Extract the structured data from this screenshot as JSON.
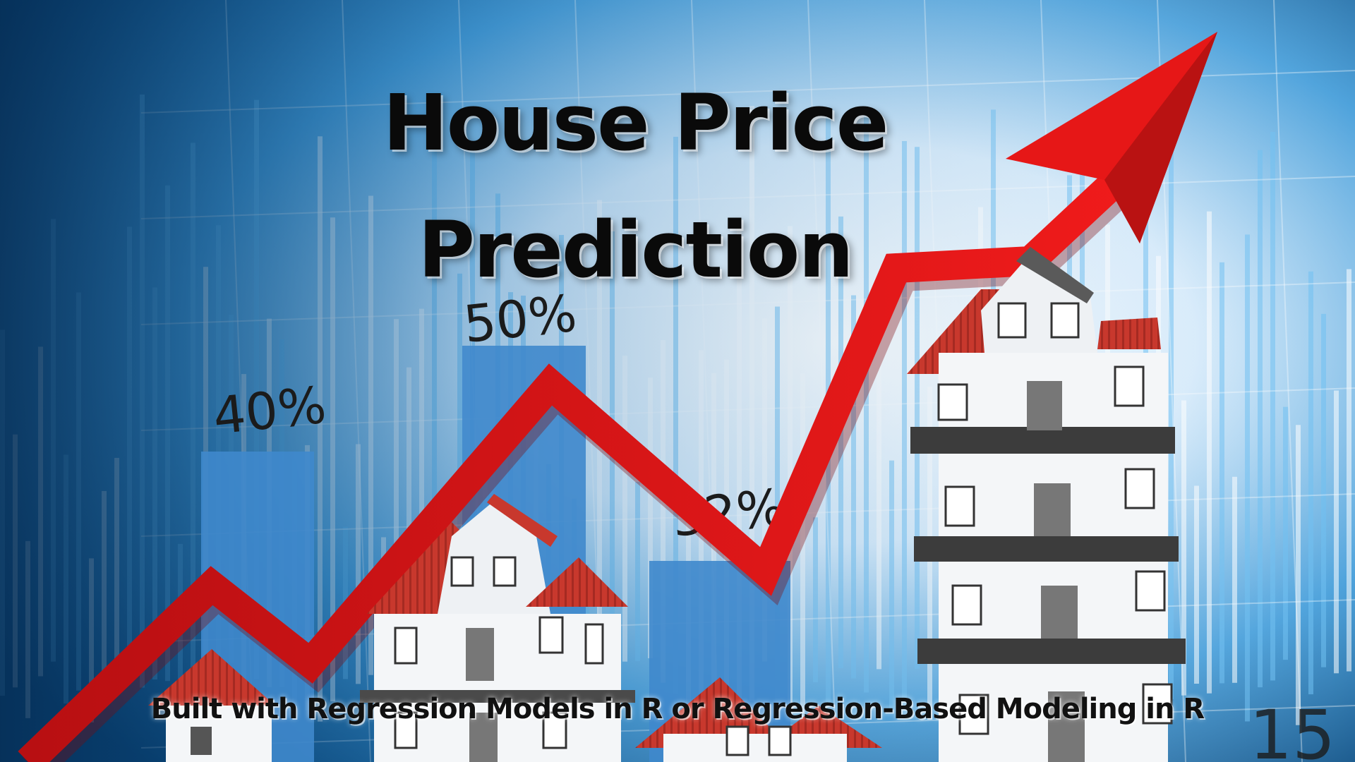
{
  "title": {
    "line1": "House Price",
    "line2": "Prediction"
  },
  "subtitle": "Built with Regression Models in R or Regression-Based Modeling in R",
  "background_labels": {
    "pct_40": "40%",
    "pct_50": "50%",
    "pct_32": "32%",
    "corner_number": "15"
  },
  "colors": {
    "background_blue": "#0d4f86",
    "bar_blue": "#3f88cc",
    "trend_arrow_red": "#e11414",
    "roof_red": "#c8382d",
    "house_white": "#f4f6f8",
    "title_text": "#0a0a0a"
  },
  "icons": [
    "house-icon",
    "trend-arrow-icon"
  ]
}
